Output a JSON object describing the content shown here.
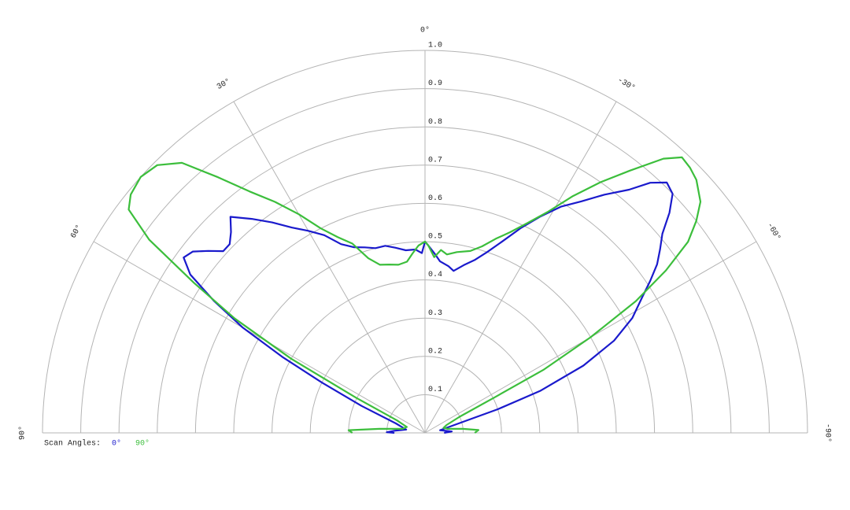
{
  "chart_data": {
    "type": "polar",
    "legend_title": "Scan Angles:",
    "xlim": [
      -90,
      90
    ],
    "xticks": [
      {
        "value": 90,
        "label": "90°"
      },
      {
        "value": 60,
        "label": "60°"
      },
      {
        "value": 30,
        "label": "30°"
      },
      {
        "value": 0,
        "label": "0°"
      },
      {
        "value": -30,
        "label": "-30°"
      },
      {
        "value": -60,
        "label": "-60°"
      },
      {
        "value": -90,
        "label": "-90°"
      }
    ],
    "ylim": [
      0,
      1
    ],
    "yticks": [
      0.1,
      0.2,
      0.3,
      0.4,
      0.5,
      0.6,
      0.7,
      0.8,
      0.9,
      {
        "value": 1,
        "label": "1.0"
      }
    ],
    "grid": true,
    "series": [
      {
        "name": "0°",
        "color": "#1a1acc",
        "x": [
          -90,
          -87,
          -80,
          -75,
          -72,
          -70,
          -67,
          -64,
          -61,
          -58,
          -56,
          -54,
          -52,
          -50,
          -48,
          -46,
          -44,
          -42,
          -40,
          -37,
          -34,
          -31,
          -28,
          -25,
          -22,
          -19,
          -16,
          -13,
          -10,
          -8,
          -5,
          -3,
          -1,
          0,
          1,
          3,
          6,
          9,
          12,
          15,
          18,
          21,
          24,
          27,
          30,
          33,
          36,
          39,
          42,
          44,
          46,
          48,
          50,
          52,
          54,
          56,
          58,
          60,
          62,
          64,
          67,
          72,
          80,
          86,
          89,
          90
        ],
        "values": [
          0.05,
          0.07,
          0.04,
          0.08,
          0.2,
          0.32,
          0.45,
          0.55,
          0.62,
          0.67,
          0.71,
          0.75,
          0.78,
          0.81,
          0.86,
          0.9,
          0.91,
          0.88,
          0.83,
          0.78,
          0.73,
          0.69,
          0.64,
          0.59,
          0.54,
          0.5,
          0.47,
          0.45,
          0.43,
          0.44,
          0.45,
          0.47,
          0.49,
          0.5,
          0.47,
          0.48,
          0.48,
          0.49,
          0.5,
          0.5,
          0.51,
          0.52,
          0.54,
          0.58,
          0.61,
          0.64,
          0.68,
          0.72,
          0.76,
          0.73,
          0.71,
          0.71,
          0.74,
          0.77,
          0.78,
          0.74,
          0.65,
          0.55,
          0.42,
          0.3,
          0.18,
          0.08,
          0.05,
          0.08,
          0.1,
          0.08
        ]
      },
      {
        "name": "90°",
        "color": "#3cbe3c",
        "x": [
          -90,
          -87,
          -84,
          -80,
          -75,
          -70,
          -65,
          -63,
          -62,
          -60,
          -58,
          -56,
          -54,
          -52,
          -50,
          -47,
          -45,
          -43,
          -41,
          -38,
          -35,
          -32,
          -29,
          -26,
          -23,
          -20,
          -17,
          -14,
          -10,
          -7,
          -5,
          -3,
          -1,
          0,
          2,
          4,
          6,
          9,
          12,
          15,
          18,
          21,
          24,
          27,
          30,
          33,
          36,
          39,
          42,
          45,
          48,
          51,
          53,
          55,
          57,
          59,
          61,
          63,
          66,
          72,
          80,
          85,
          88,
          90
        ],
        "values": [
          0.13,
          0.14,
          0.1,
          0.06,
          0.05,
          0.06,
          0.1,
          0.2,
          0.35,
          0.5,
          0.65,
          0.76,
          0.85,
          0.9,
          0.94,
          0.97,
          0.98,
          0.985,
          0.95,
          0.87,
          0.8,
          0.73,
          0.66,
          0.61,
          0.57,
          0.54,
          0.51,
          0.49,
          0.48,
          0.47,
          0.48,
          0.46,
          0.49,
          0.5,
          0.49,
          0.47,
          0.45,
          0.445,
          0.45,
          0.455,
          0.48,
          0.53,
          0.56,
          0.6,
          0.66,
          0.72,
          0.78,
          0.86,
          0.95,
          0.99,
          1.0,
          0.99,
          0.97,
          0.88,
          0.72,
          0.58,
          0.4,
          0.2,
          0.08,
          0.05,
          0.06,
          0.12,
          0.2,
          0.19
        ]
      }
    ]
  }
}
